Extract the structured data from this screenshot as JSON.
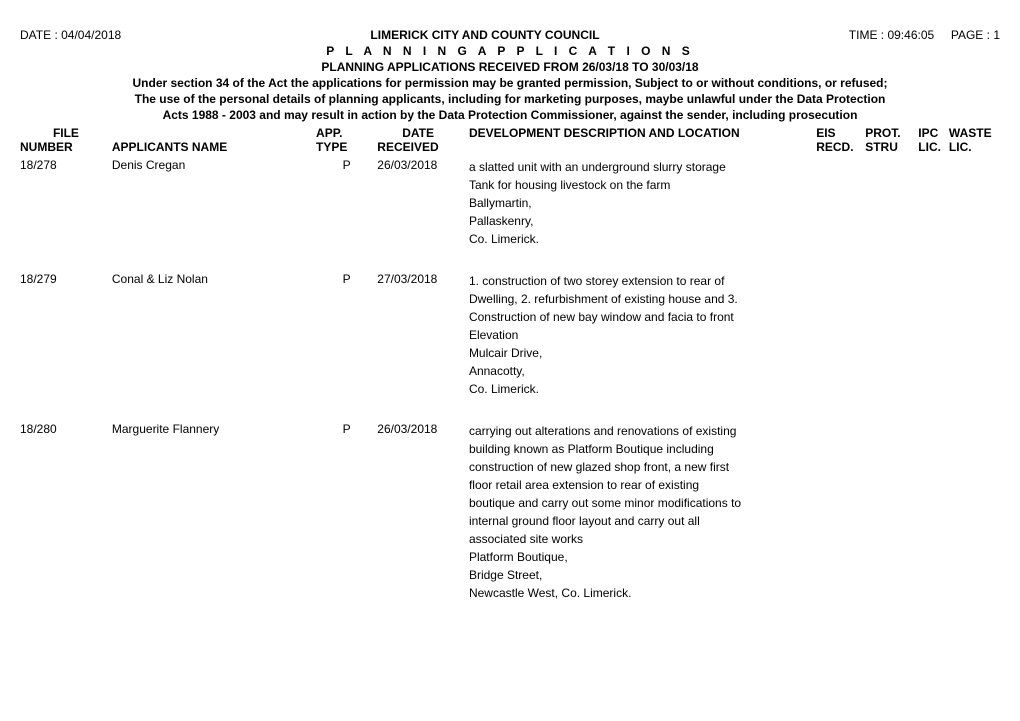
{
  "meta": {
    "date_label": "DATE : 04/04/2018",
    "time_label": "TIME : 09:46:05",
    "page_label": "PAGE : 1",
    "council": "LIMERICK CITY AND COUNTY COUNCIL",
    "subtitle": "P L A N N I N G   A P P L I C A T I O N S",
    "received_line": "PLANNING APPLICATIONS RECEIVED FROM 26/03/18 TO 30/03/18",
    "note1": "Under section 34 of the Act the applications for permission may be granted permission, Subject to or without conditions, or refused;",
    "note2": "The use of the personal details of planning applicants, including for marketing purposes, maybe unlawful under the Data Protection",
    "note3": "Acts 1988 - 2003 and may result in action by the Data Protection Commissioner, against the sender, including prosecution"
  },
  "columns": {
    "file": {
      "line1": "FILE",
      "line2": "NUMBER"
    },
    "applicants": {
      "line1": "",
      "line2": "APPLICANTS NAME"
    },
    "app_type": {
      "line1": "APP.",
      "line2": "TYPE"
    },
    "date": {
      "line1": "DATE",
      "line2": "RECEIVED"
    },
    "desc": {
      "line1": "DEVELOPMENT DESCRIPTION AND LOCATION",
      "line2": ""
    },
    "eis": {
      "line1": "EIS",
      "line2": "RECD."
    },
    "prot": {
      "line1": "PROT.",
      "line2": "STRU"
    },
    "ipc": {
      "line1": "IPC",
      "line2": "LIC."
    },
    "waste": {
      "line1": "WASTE",
      "line2": "LIC."
    }
  },
  "rows": [
    {
      "file_number": "18/278",
      "applicant": "Denis Cregan",
      "app_type": "P",
      "date_received": "26/03/2018",
      "desc_lines": [
        "a slatted unit with an underground slurry storage",
        "Tank for housing livestock on the farm",
        "Ballymartin,",
        "Pallaskenry,",
        "Co. Limerick."
      ],
      "eis": "",
      "prot": "",
      "ipc": "",
      "waste": ""
    },
    {
      "file_number": "18/279",
      "applicant": "Conal & Liz Nolan",
      "app_type": "P",
      "date_received": "27/03/2018",
      "desc_lines": [
        "1. construction of two storey extension to rear of",
        "Dwelling, 2. refurbishment of existing house and 3.",
        "Construction of new bay window and facia to front",
        "Elevation",
        "Mulcair Drive,",
        "Annacotty,",
        "Co. Limerick."
      ],
      "eis": "",
      "prot": "",
      "ipc": "",
      "waste": ""
    },
    {
      "file_number": "18/280",
      "applicant": "Marguerite Flannery",
      "app_type": "P",
      "date_received": "26/03/2018",
      "desc_lines": [
        "carrying out alterations and renovations of existing",
        "building known as Platform Boutique including",
        "construction of new glazed shop front, a new first",
        "floor retail area extension to rear of existing",
        "boutique and carry out some minor modifications to",
        "internal ground floor layout and carry out all",
        "associated site works",
        "Platform Boutique,",
        "Bridge Street,",
        "Newcastle West, Co. Limerick."
      ],
      "eis": "",
      "prot": "",
      "ipc": "",
      "waste": ""
    }
  ]
}
